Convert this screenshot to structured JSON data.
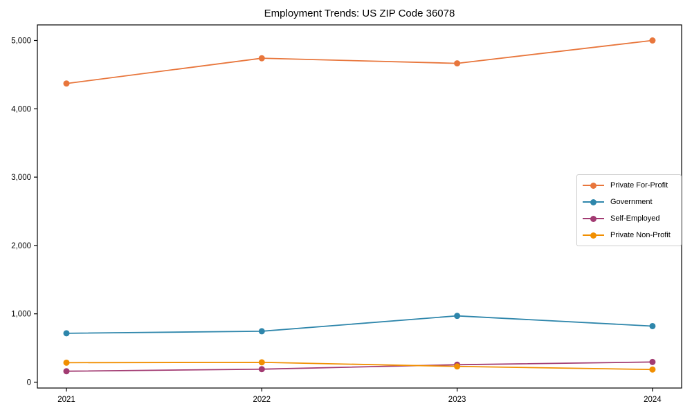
{
  "title": "Employment Trends: US ZIP Code 36078",
  "chart_data": {
    "type": "line",
    "title": "Employment Trends: US ZIP Code 36078",
    "x": [
      "2021",
      "2022",
      "2023",
      "2024"
    ],
    "xlabel": "",
    "ylabel": "",
    "ylim": [
      0,
      5000
    ],
    "yticks": [
      0,
      1000,
      2000,
      3000,
      4000,
      5000
    ],
    "ytick_labels": [
      "0",
      "1,000",
      "2,000",
      "3,000",
      "4,000",
      "5,000"
    ],
    "grid": false,
    "legend_position": "center-right",
    "marker": "circle",
    "series": [
      {
        "name": "Private For-Profit",
        "color": "#E8763C",
        "values": [
          4370,
          4740,
          4665,
          5000
        ]
      },
      {
        "name": "Government",
        "color": "#2E86AB",
        "values": [
          715,
          745,
          970,
          820
        ]
      },
      {
        "name": "Self-Employed",
        "color": "#A23B72",
        "values": [
          160,
          190,
          255,
          295
        ]
      },
      {
        "name": "Private Non-Profit",
        "color": "#F18F01",
        "values": [
          285,
          290,
          230,
          185
        ]
      }
    ]
  }
}
